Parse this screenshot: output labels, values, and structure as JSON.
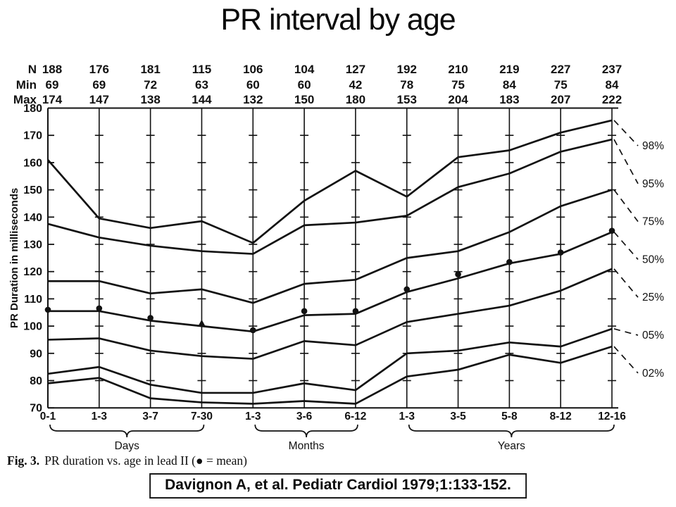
{
  "title": "PR interval by age",
  "caption": {
    "bold_prefix": "Fig. 3.",
    "rest": "PR duration vs. age in lead II (● = mean)"
  },
  "citation": "Davignon A, et al. Pediatr Cardiol 1979;1:133-152.",
  "stats_table": {
    "row_labels": [
      "N",
      "Min",
      "Max"
    ],
    "rows": {
      "N": [
        188,
        176,
        181,
        115,
        106,
        104,
        127,
        192,
        210,
        219,
        227,
        237
      ],
      "Min": [
        69,
        69,
        72,
        63,
        60,
        60,
        42,
        78,
        75,
        84,
        75,
        84
      ],
      "Max": [
        174,
        147,
        138,
        144,
        132,
        150,
        180,
        153,
        204,
        183,
        207,
        222
      ]
    }
  },
  "chart_data": {
    "type": "line",
    "title": "PR duration vs. age in lead II",
    "ylabel": "PR Duration in milliseconds",
    "xlabel": "",
    "ylim": [
      70,
      180
    ],
    "ytick_step": 10,
    "grid": "category-gridlines-with-ticks",
    "legend_position": "right",
    "categories": [
      "0-1",
      "1-3",
      "3-7",
      "7-30",
      "1-3",
      "3-6",
      "6-12",
      "1-3",
      "3-5",
      "5-8",
      "8-12",
      "12-16"
    ],
    "category_groups": [
      {
        "label": "Days",
        "from": 0,
        "to": 3
      },
      {
        "label": "Months",
        "from": 4,
        "to": 6
      },
      {
        "label": "Years",
        "from": 7,
        "to": 11
      }
    ],
    "series": [
      {
        "name": "98%",
        "values": [
          161,
          139.5,
          136,
          138.5,
          130.5,
          146,
          157,
          147.5,
          162,
          164.5,
          171,
          175.5
        ]
      },
      {
        "name": "95%",
        "values": [
          137.5,
          132.5,
          129.5,
          127.5,
          126.5,
          137,
          138,
          140.5,
          151,
          156,
          164,
          168.5
        ]
      },
      {
        "name": "75%",
        "values": [
          116.5,
          116.5,
          112,
          113.5,
          108.5,
          115.5,
          117,
          125,
          127.5,
          134.5,
          144,
          150
        ]
      },
      {
        "name": "50%",
        "values": [
          105.5,
          105.5,
          102,
          100,
          98,
          104,
          104.5,
          112.5,
          117.5,
          123,
          126.5,
          134.5
        ]
      },
      {
        "name": "25%",
        "values": [
          95,
          95.5,
          91,
          89,
          88,
          94.5,
          93,
          101.5,
          104.5,
          107.5,
          113,
          121
        ]
      },
      {
        "name": "05%",
        "values": [
          82.5,
          85,
          78.5,
          75.5,
          75.5,
          79,
          76.5,
          90,
          91,
          94,
          92.5,
          99
        ]
      },
      {
        "name": "02%",
        "values": [
          79,
          81,
          73.5,
          72,
          71.5,
          72.5,
          71.5,
          81.5,
          84,
          89.5,
          86.5,
          92.5
        ]
      }
    ],
    "mean_series": {
      "name": "mean",
      "legend_note": "● = mean",
      "values": [
        106,
        106.5,
        103,
        101,
        98.5,
        105.5,
        105.5,
        113.5,
        119,
        123.5,
        127,
        135
      ],
      "markers": [
        "circle",
        "circle",
        "circle",
        "triangle",
        "circle",
        "circle",
        "circle",
        "circle",
        "circle",
        "circle",
        "circle",
        "circle"
      ]
    }
  }
}
